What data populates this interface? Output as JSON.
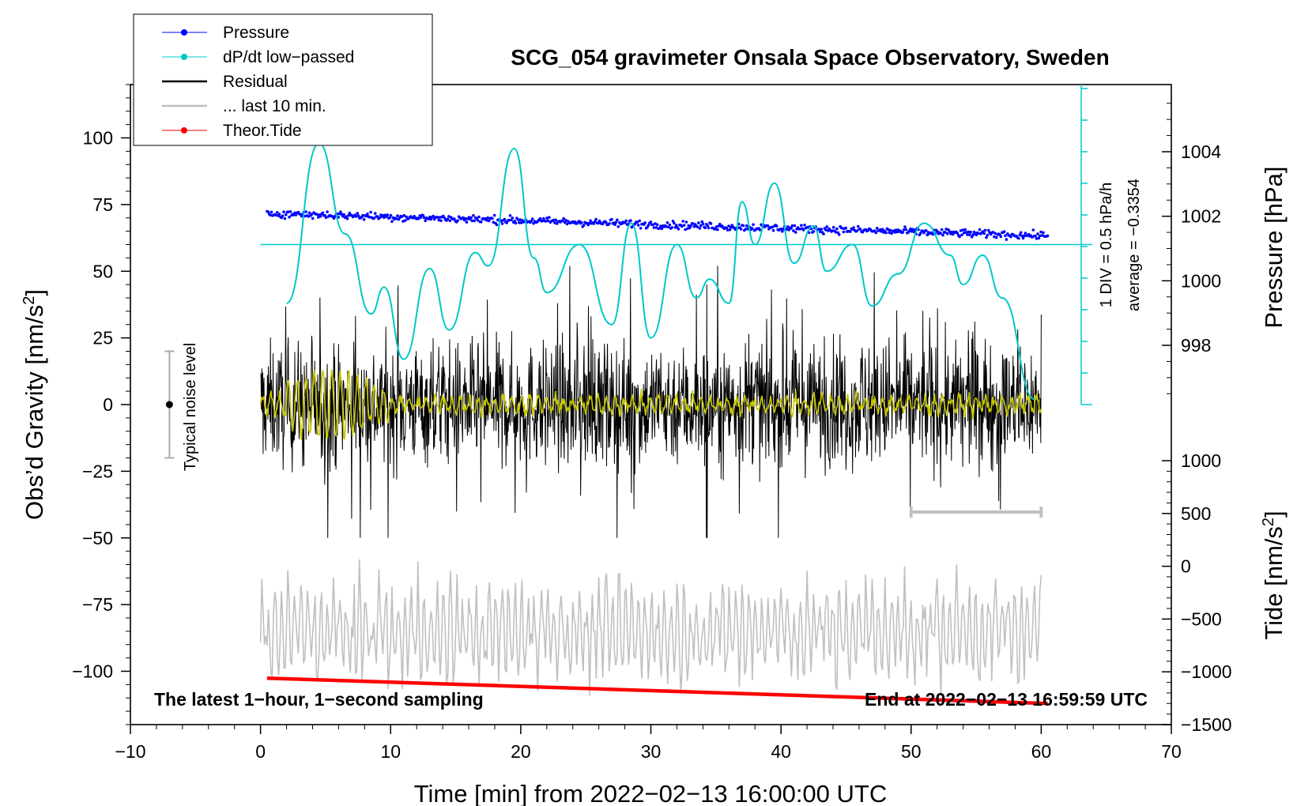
{
  "chart_data": {
    "type": "line",
    "title": "SCG_054 gravimeter Onsala Space Observatory, Sweden",
    "xlabel": "Time [min] from 2022−02−13 16:00:00 UTC",
    "ylabel_left": "Obs’d Gravity [nm/s",
    "ylabel_left_sup": "2",
    "ylabel_left_end": "]",
    "ylabel_right_top": "Pressure [hPa]",
    "ylabel_right_bottom": "Tide [nm/s",
    "ylabel_right_bottom_sup": "2",
    "ylabel_right_bottom_end": "]",
    "xlim": [
      -10,
      70
    ],
    "ylim": [
      -120,
      120
    ],
    "x_ticks": [
      -10,
      0,
      10,
      20,
      30,
      40,
      50,
      60,
      70
    ],
    "x_tick_labels": [
      "−10",
      "0",
      "10",
      "20",
      "30",
      "40",
      "50",
      "60",
      "70"
    ],
    "y_ticks": [
      100,
      75,
      50,
      25,
      0,
      -25,
      -50,
      -75,
      -100
    ],
    "y_tick_labels": [
      "100",
      "75",
      "50",
      "25",
      "0",
      "−25",
      "−50",
      "−75",
      "−100"
    ],
    "pressure_ticks": [
      1004,
      1002,
      1000,
      998
    ],
    "pressure_tick_labels": [
      "1004",
      "1002",
      "1000",
      "998"
    ],
    "pressure_range": [
      996,
      1006
    ],
    "tide_ticks": [
      1000,
      500,
      0,
      -500,
      -1000,
      -1500
    ],
    "tide_tick_labels": [
      "1000",
      "500",
      "0",
      "−500",
      "−1000",
      "−1500"
    ],
    "tide_range": [
      -1500,
      1000
    ],
    "legend": [
      {
        "label": "Pressure",
        "color": "#0000ff",
        "marker": true
      },
      {
        "label": "dP/dt low−passed",
        "color": "#00c8c8",
        "marker": true
      },
      {
        "label": "Residual",
        "color": "#000000",
        "marker": false
      },
      {
        "label": "... last 10 min.",
        "color": "#c0c0c0",
        "marker": false
      },
      {
        "label": "Theor.Tide",
        "color": "#ff0000",
        "marker": true
      }
    ],
    "annotation_left": "The latest 1−hour, 1−second sampling",
    "annotation_right": "End at 2022−02−13 16:59:59 UTC",
    "noise_label": "Typical noise level",
    "noise_range": [
      -20,
      20
    ],
    "dpdt_scale_label": "1 DIV = 0.5 hPa/h",
    "dpdt_average_label": "average = −0.3354",
    "pressure_start_hpa": 1002.1,
    "pressure_end_hpa": 1001.4,
    "tide_start_nms2": -1060,
    "tide_end_nms2": -1300,
    "dpdt_baseline_gravity": 60,
    "dpdt_peaks": [
      [
        2,
        38
      ],
      [
        4.5,
        98
      ],
      [
        6.5,
        64
      ],
      [
        8.5,
        34
      ],
      [
        9.5,
        44
      ],
      [
        11,
        17
      ],
      [
        13,
        51
      ],
      [
        14.5,
        28
      ],
      [
        16.5,
        57
      ],
      [
        17.5,
        52
      ],
      [
        19.5,
        96
      ],
      [
        21,
        55
      ],
      [
        22,
        42
      ],
      [
        24.5,
        60
      ],
      [
        27,
        30
      ],
      [
        28.5,
        68
      ],
      [
        30,
        25
      ],
      [
        32,
        60
      ],
      [
        33.5,
        40
      ],
      [
        34.5,
        47
      ],
      [
        36,
        38
      ],
      [
        37,
        76
      ],
      [
        38,
        60
      ],
      [
        39.5,
        83
      ],
      [
        41,
        53
      ],
      [
        42.5,
        67
      ],
      [
        43.5,
        50
      ],
      [
        45.5,
        60
      ],
      [
        47,
        37
      ],
      [
        49,
        49
      ],
      [
        51,
        68
      ],
      [
        53,
        56
      ],
      [
        54,
        45
      ],
      [
        55.5,
        56
      ],
      [
        57,
        40
      ],
      [
        59.5,
        2
      ]
    ],
    "series": [
      {
        "name": "Pressure",
        "color": "#0000ff",
        "units": "hPa"
      },
      {
        "name": "dP/dt low−passed",
        "color": "#00c8c8",
        "units": "hPa/h"
      },
      {
        "name": "Residual",
        "color": "#000000",
        "units": "nm/s2",
        "amplitude_approx": 35
      },
      {
        "name": "... last 10 min.",
        "color": "#c0c0c0",
        "units": "nm/s2",
        "offset": -85
      },
      {
        "name": "Theor.Tide",
        "color": "#ff0000",
        "units": "nm/s2"
      },
      {
        "name": "low-pass residual",
        "color": "#c8c800",
        "units": "nm/s2"
      }
    ]
  }
}
